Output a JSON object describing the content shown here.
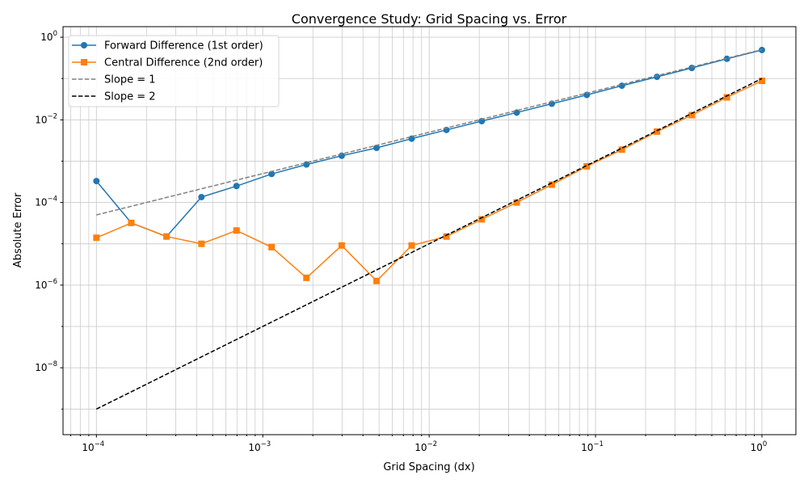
{
  "chart_data": {
    "type": "line",
    "title": "Convergence Study: Grid Spacing vs. Error",
    "xlabel": "Grid Spacing (dx)",
    "ylabel": "Absolute Error",
    "xscale": "log",
    "yscale": "log",
    "xlim": [
      6.3e-05,
      1.6
    ],
    "ylim": [
      2.4e-10,
      1.8
    ],
    "grid": "both, light gray",
    "legend": "top-left",
    "x_ticks": [
      {
        "value": 0.0001,
        "label": "10^-4",
        "base": "10",
        "exp": "−4"
      },
      {
        "value": 0.001,
        "label": "10^-3",
        "base": "10",
        "exp": "−3"
      },
      {
        "value": 0.01,
        "label": "10^-2",
        "base": "10",
        "exp": "−2"
      },
      {
        "value": 0.1,
        "label": "10^-1",
        "base": "10",
        "exp": "−1"
      },
      {
        "value": 1,
        "label": "10^0",
        "base": "10",
        "exp": "0"
      }
    ],
    "y_ticks": [
      {
        "value": 1,
        "label": "10^0",
        "base": "10",
        "exp": "0"
      },
      {
        "value": 0.01,
        "label": "10^-2",
        "base": "10",
        "exp": "−2"
      },
      {
        "value": 0.0001,
        "label": "10^-4",
        "base": "10",
        "exp": "−4"
      },
      {
        "value": 1e-06,
        "label": "10^-6",
        "base": "10",
        "exp": "−6"
      },
      {
        "value": 1e-08,
        "label": "10^-8",
        "base": "10",
        "exp": "−8"
      }
    ],
    "x": [
      0.0001,
      0.000162,
      0.000264,
      0.000428,
      0.000695,
      0.00113,
      0.00183,
      0.00298,
      0.00483,
      0.00785,
      0.0127,
      0.0207,
      0.0336,
      0.0546,
      0.0886,
      0.144,
      0.234,
      0.379,
      0.616,
      1.0
    ],
    "series": [
      {
        "name": "Forward Difference (1st order)",
        "color": "#1f77b4",
        "marker": "circle",
        "style": "solid",
        "values": [
          0.00033,
          3.2e-05,
          1.5e-05,
          0.000135,
          0.00025,
          0.00049,
          0.00083,
          0.00135,
          0.0021,
          0.0035,
          0.0057,
          0.0093,
          0.015,
          0.0245,
          0.04,
          0.067,
          0.11,
          0.18,
          0.3,
          0.49
        ]
      },
      {
        "name": "Central Difference (2nd order)",
        "color": "#ff7f0e",
        "marker": "square",
        "style": "solid",
        "values": [
          1.4e-05,
          3.2e-05,
          1.5e-05,
          1e-05,
          2.1e-05,
          8.3e-06,
          1.5e-06,
          9.1e-06,
          1.26e-06,
          9.1e-06,
          1.5e-05,
          3.9e-05,
          0.0001,
          0.00027,
          0.00075,
          0.0019,
          0.0052,
          0.013,
          0.035,
          0.088
        ]
      },
      {
        "name": "Slope = 1",
        "color": "#808080",
        "marker": "none",
        "style": "dashed",
        "formula": "0.5*dx"
      },
      {
        "name": "Slope = 2",
        "color": "#000000",
        "marker": "none",
        "style": "dashed",
        "formula": "0.1*dx^2"
      }
    ]
  }
}
